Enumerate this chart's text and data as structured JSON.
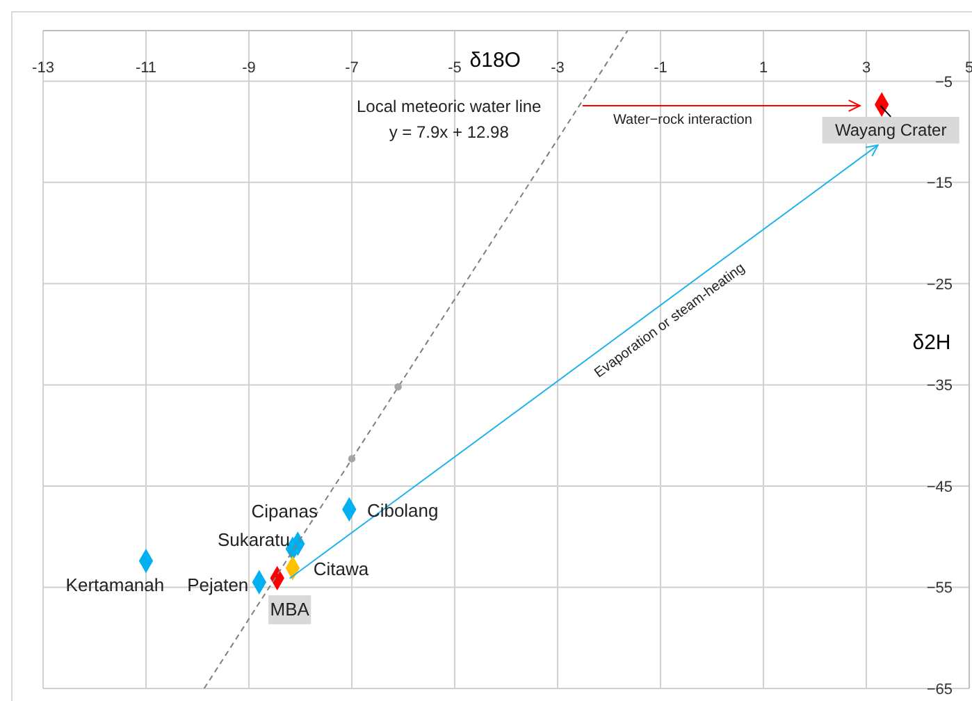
{
  "chart_data": {
    "type": "scatter",
    "xlabel": "δ18O",
    "ylabel": "δ2H",
    "xlim": [
      -13,
      5
    ],
    "ylim": [
      -65,
      0
    ],
    "xticks": [
      -13,
      -11,
      -9,
      -7,
      -5,
      -3,
      -1,
      1,
      3,
      5
    ],
    "yticks": [
      {
        "value": -5,
        "label": "−5"
      },
      {
        "value": -15,
        "label": "−15"
      },
      {
        "value": -25,
        "label": "−25"
      },
      {
        "value": -35,
        "label": "−35"
      },
      {
        "value": -45,
        "label": "−45"
      },
      {
        "value": -55,
        "label": "−55"
      },
      {
        "value": -65,
        "label": "−65"
      }
    ],
    "grid": true,
    "marker": "diamond",
    "series": [
      {
        "type": "scatter",
        "x": [
          -11.0,
          -8.8,
          -8.15,
          -8.05,
          -7.05,
          -8.15,
          -8.45,
          3.3
        ],
        "values": [
          -52.4,
          -54.5,
          -51.2,
          -50.7,
          -47.3,
          -53.1,
          -54.1,
          -7.3
        ],
        "colors": [
          "#00b0f0",
          "#00b0f0",
          "#00b0f0",
          "#00b0f0",
          "#00b0f0",
          "#ffc000",
          "#ff0000",
          "#ff0000"
        ]
      },
      {
        "type": "line",
        "line_style": "dashed",
        "marker": "none",
        "color": "#7f7f7f",
        "x": [
          -9.87,
          -1.64
        ],
        "values": [
          -65,
          0
        ]
      },
      {
        "type": "scatter",
        "marker": "circle",
        "color": "#a6a6a6",
        "x": [
          -7.0,
          -6.1
        ],
        "values": [
          -42.3,
          -35.2
        ]
      }
    ],
    "annotations": [
      "Kertamanah",
      "Pejaten",
      "Sukaratu",
      "Cipanas",
      "Cibolang",
      "Citawa",
      "MBA",
      {
        "text": "Wayang Crater",
        "x": 3.3,
        "y": -7.3
      },
      "Local meteoric water line",
      "y = 7.9x + 12.98",
      "Water−rock interaction",
      "Evaporation or steam-heating"
    ]
  }
}
